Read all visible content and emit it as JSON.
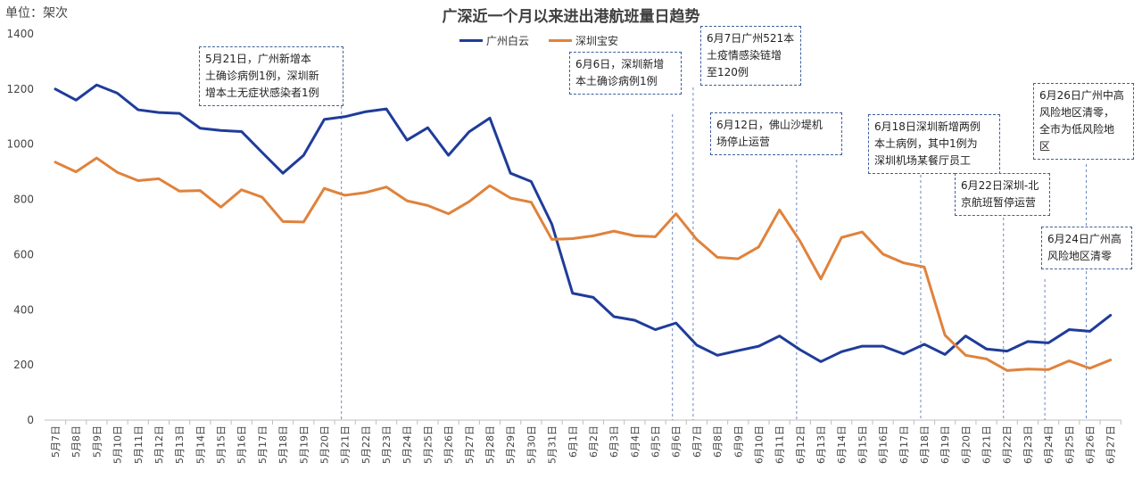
{
  "chart_data": {
    "type": "line",
    "title": "广深近一个月以来进出港航班量日趋势",
    "ylabel": "单位：架次",
    "xlabel": "",
    "ylim": [
      0,
      1400
    ],
    "yticks": [
      0,
      200,
      400,
      600,
      800,
      1000,
      1200,
      1400
    ],
    "grid": false,
    "legend_position": "top",
    "categories": [
      "5月7日",
      "5月8日",
      "5月9日",
      "5月10日",
      "5月11日",
      "5月12日",
      "5月13日",
      "5月14日",
      "5月15日",
      "5月16日",
      "5月17日",
      "5月18日",
      "5月19日",
      "5月20日",
      "5月21日",
      "5月22日",
      "5月23日",
      "5月24日",
      "5月25日",
      "5月26日",
      "5月27日",
      "5月28日",
      "5月29日",
      "5月30日",
      "5月31日",
      "6月1日",
      "6月2日",
      "6月3日",
      "6月4日",
      "6月5日",
      "6月6日",
      "6月7日",
      "6月8日",
      "6月9日",
      "6月10日",
      "6月11日",
      "6月12日",
      "6月13日",
      "6月14日",
      "6月15日",
      "6月16日",
      "6月17日",
      "6月18日",
      "6月19日",
      "6月20日",
      "6月21日",
      "6月22日",
      "6月23日",
      "6月24日",
      "6月25日",
      "6月26日",
      "6月27日"
    ],
    "series": [
      {
        "name": "广州白云",
        "color": "#1f3c99",
        "values": [
          1200,
          1160,
          1215,
          1185,
          1125,
          1115,
          1112,
          1058,
          1050,
          1046,
          970,
          895,
          960,
          1090,
          1100,
          1118,
          1128,
          1015,
          1060,
          960,
          1045,
          1095,
          895,
          865,
          710,
          460,
          445,
          375,
          362,
          328,
          352,
          272,
          235,
          252,
          268,
          305,
          255,
          212,
          248,
          268,
          268,
          240,
          275,
          238,
          305,
          258,
          250,
          285,
          280,
          328,
          322,
          380
        ]
      },
      {
        "name": "深圳宝安",
        "color": "#e0823c",
        "values": [
          935,
          900,
          950,
          898,
          868,
          875,
          830,
          832,
          772,
          835,
          808,
          720,
          718,
          840,
          815,
          825,
          845,
          795,
          778,
          748,
          792,
          850,
          805,
          790,
          655,
          658,
          668,
          685,
          668,
          665,
          748,
          655,
          590,
          585,
          628,
          762,
          648,
          512,
          662,
          682,
          602,
          570,
          555,
          308,
          235,
          222,
          180,
          185,
          183,
          215,
          188,
          218
        ]
      }
    ]
  },
  "annotations": [
    {
      "text": "5月21日，广州新增本\n土确诊病例1例，深圳新\n增本土无症状感染者1例",
      "date": "5月21日"
    },
    {
      "text": "6月6日，深圳新增\n本土确诊病例1例",
      "date": "6月6日"
    },
    {
      "text": "6月7日广州521本\n土疫情感染链增\n至120例",
      "date": "6月7日"
    },
    {
      "text": "6月12日，佛山沙堤机\n场停止运营",
      "date": "6月12日"
    },
    {
      "text": "6月18日深圳新增两例\n本土病例，其中1例为\n深圳机场某餐厅员工",
      "date": "6月18日"
    },
    {
      "text": "6月22日深圳-北\n京航班暂停运营",
      "date": "6月22日"
    },
    {
      "text": "6月24日广州高\n风险地区清零",
      "date": "6月24日"
    },
    {
      "text": "6月26日广州中高\n风险地区清零，\n全市为低风险地\n区",
      "date": "6月26日"
    }
  ]
}
